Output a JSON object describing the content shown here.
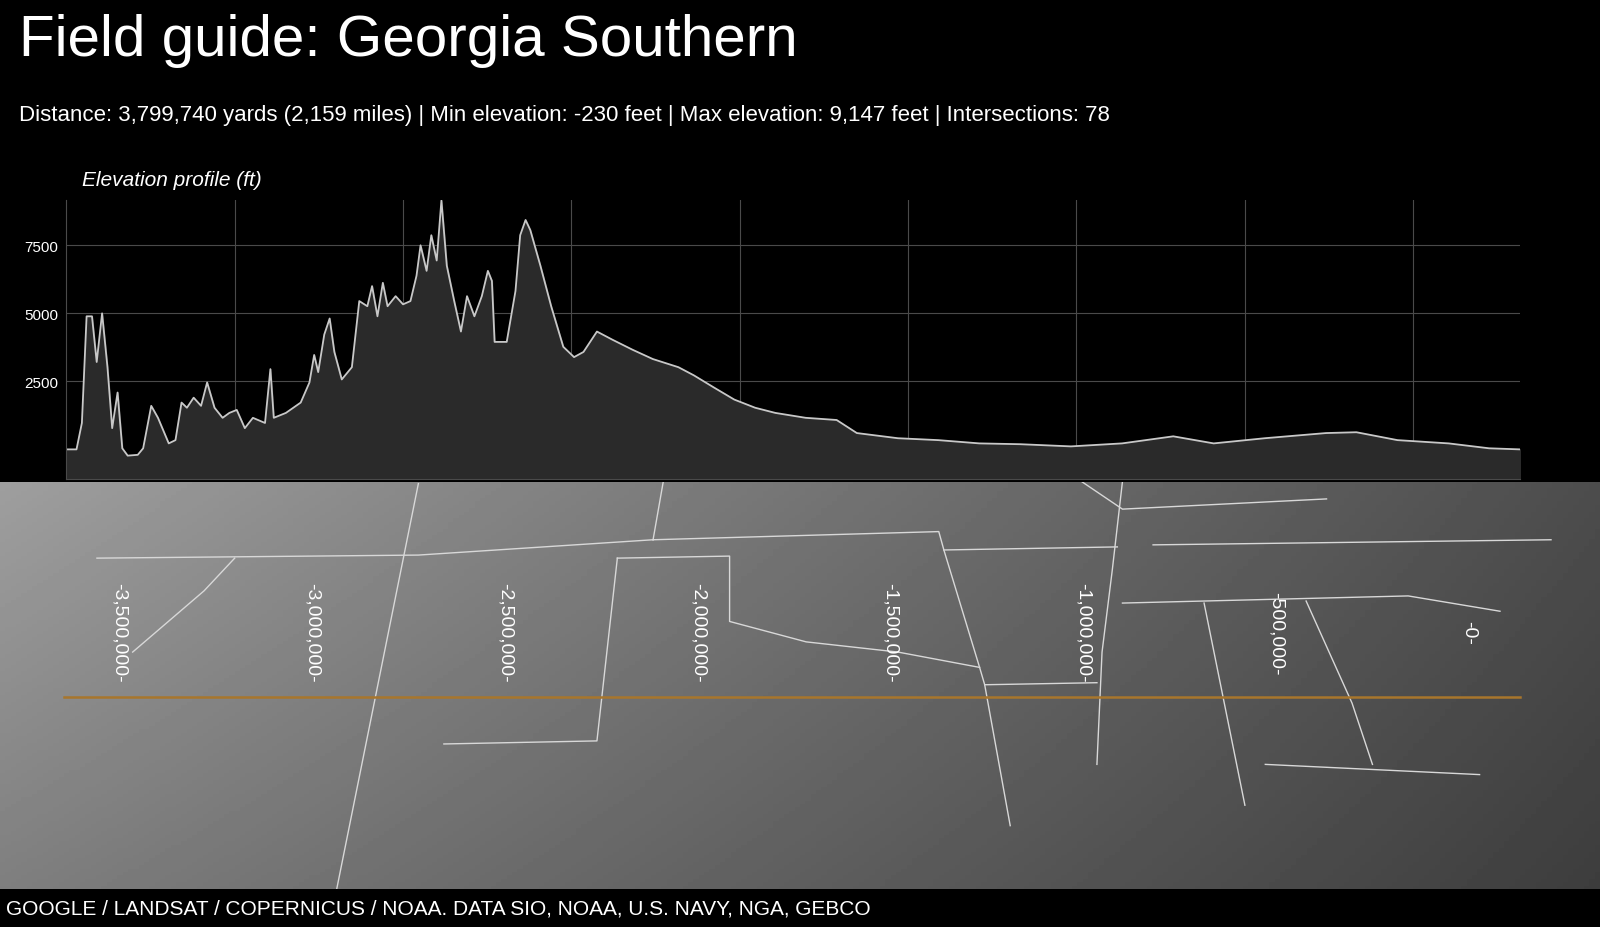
{
  "header": {
    "title": "Field guide: Georgia Southern",
    "subtitle": "Distance: 3,799,740 yards (2,159 miles) | Min elevation: -230 feet | Max elevation: 9,147 feet | Intersections: 78"
  },
  "footer": "GOOGLE / LANDSAT / COPERNICUS / NOAA. DATA SIO, NOAA, U.S. NAVY, NGA, GEBCO",
  "chart_data": [
    {
      "type": "area",
      "title": "Elevation profile (ft)",
      "color": "#c8c8c8",
      "x": [
        0,
        15,
        23,
        30,
        38,
        45,
        53,
        61,
        68,
        76,
        83,
        91,
        106,
        114,
        126,
        136,
        152,
        162,
        171,
        179,
        189,
        200,
        209,
        220,
        232,
        242,
        253,
        265,
        277,
        295,
        303,
        308,
        326,
        348,
        361,
        368,
        374,
        383,
        391,
        398,
        409,
        424,
        435,
        447,
        454,
        462,
        470,
        477,
        489,
        500,
        511,
        520,
        526,
        535,
        542,
        550,
        557,
        565,
        576,
        586,
        595,
        606,
        617,
        626,
        632,
        636,
        654,
        667,
        674,
        682,
        689,
        704,
        720,
        738,
        754,
        768,
        788,
        811,
        841,
        871,
        909,
        932,
        962,
        992,
        1023,
        1053,
        1098,
        1144,
        1174,
        1235,
        1295,
        1356,
        1417,
        1492,
        1568,
        1644,
        1704,
        1780,
        1871,
        1916,
        1977,
        2053,
        2113,
        2159
      ],
      "values": [
        0,
        0,
        970,
        4890,
        4890,
        3210,
        5000,
        3020,
        780,
        2090,
        40,
        -230,
        -200,
        40,
        1600,
        1160,
        220,
        340,
        1720,
        1530,
        1900,
        1600,
        2460,
        1530,
        1160,
        1340,
        1450,
        780,
        1160,
        970,
        2950,
        1160,
        1340,
        1720,
        2460,
        3470,
        2840,
        4220,
        4810,
        3580,
        2570,
        3020,
        5450,
        5260,
        6000,
        4890,
        6120,
        5260,
        5630,
        5330,
        5450,
        6380,
        7500,
        6560,
        7870,
        6940,
        9147,
        6750,
        5450,
        4330,
        5630,
        4890,
        5630,
        6560,
        6190,
        3950,
        3950,
        5820,
        7870,
        8430,
        8060,
        6750,
        5260,
        3770,
        3390,
        3580,
        4330,
        4030,
        3660,
        3320,
        3020,
        2720,
        2270,
        1830,
        1530,
        1340,
        1160,
        1080,
        600,
        410,
        340,
        220,
        190,
        110,
        220,
        480,
        220,
        410,
        600,
        630,
        340,
        220,
        40,
        0
      ],
      "xlim": [
        0,
        2159
      ],
      "xticks": [
        250,
        500,
        750,
        1000,
        1250,
        1500,
        1750,
        2000
      ],
      "ylim": [
        -1080,
        9150
      ],
      "yticks": [
        2500,
        5000,
        7500
      ],
      "grid": true,
      "tick_labels": "y"
    },
    {
      "type": "map",
      "color": "#a8762c",
      "x": [
        -3645000,
        132000
      ],
      "xlim": [
        -3810000,
        340000
      ],
      "xticks": [
        {
          "value": -3500000,
          "label": "-3,500,000-"
        },
        {
          "value": -3000000,
          "label": "-3,000,000-"
        },
        {
          "value": -2500000,
          "label": "-2,500,000-"
        },
        {
          "value": -2000000,
          "label": "-2,000,000-"
        },
        {
          "value": -1500000,
          "label": "-1,500,000-"
        },
        {
          "value": -1000000,
          "label": "-1,000,000-"
        },
        {
          "value": -500000,
          "label": "-500,000-"
        },
        {
          "value": 0,
          "label": "-0-"
        }
      ],
      "tick_labels": "x"
    }
  ]
}
